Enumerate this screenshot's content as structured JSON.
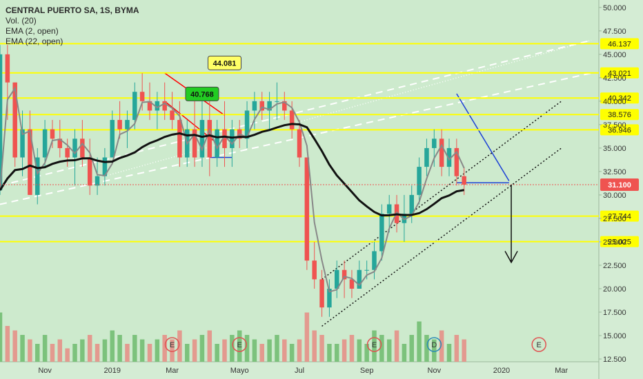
{
  "chart_data": {
    "type": "candlestick",
    "legend": {
      "title": "CENTRAL PUERTO SA, 1S, BYMA",
      "vol": "Vol. (20)",
      "ema2": "EMA (2, open)",
      "ema22": "EMA (22, open)"
    },
    "y_ticks": [
      "50.000",
      "47.500",
      "45.000",
      "42.500",
      "40.000",
      "37.500",
      "35.000",
      "32.500",
      "30.000",
      "27.500",
      "25.000",
      "22.500",
      "20.000",
      "17.500",
      "15.000",
      "12.500"
    ],
    "y_tick_values": [
      50,
      47.5,
      45,
      42.5,
      40,
      37.5,
      35,
      32.5,
      30,
      27.5,
      25,
      22.5,
      20,
      17.5,
      15,
      12.5
    ],
    "ylim": [
      12.5,
      50.5
    ],
    "x_ticks": [
      "Nov",
      "2019",
      "Mar",
      "Mayo",
      "Jul",
      "Sep",
      "Nov",
      "2020",
      "Mar"
    ],
    "x_tick_weeks": [
      2,
      11,
      19,
      28,
      36,
      45,
      54,
      63,
      71
    ],
    "x_range_weeks": [
      -4,
      76
    ],
    "horizontal_levels": [
      {
        "label": "46.137",
        "value": 46.137
      },
      {
        "label": "43.021",
        "value": 43.021
      },
      {
        "label": "40.342",
        "value": 40.342
      },
      {
        "label": "38.576",
        "value": 38.576
      },
      {
        "label": "36.946",
        "value": 36.946
      },
      {
        "label": "27.744",
        "value": 27.744
      },
      {
        "label": "25.025",
        "value": 25.025
      }
    ],
    "last_price": {
      "label": "31.100",
      "value": 31.1
    },
    "callouts": [
      {
        "label": "44.081",
        "value": 44.081,
        "week": 26
      },
      {
        "label": "40.768",
        "value": 40.768,
        "week": 23
      }
    ],
    "events": [
      {
        "letter": "E",
        "week": 19
      },
      {
        "letter": "E",
        "week": 28
      },
      {
        "letter": "E",
        "week": 46
      },
      {
        "letter": "D",
        "week": 54
      },
      {
        "letter": "E",
        "week": 68
      }
    ],
    "candles": [
      [
        -4,
        30.5,
        46,
        30,
        45
      ],
      [
        -3,
        45,
        46,
        38,
        42
      ],
      [
        -2,
        42,
        42,
        33,
        34
      ],
      [
        -1,
        34,
        39,
        32,
        37
      ],
      [
        0,
        37,
        39,
        30,
        30
      ],
      [
        1,
        30,
        35,
        29,
        34
      ],
      [
        2,
        34,
        38,
        33,
        37
      ],
      [
        3,
        37,
        38,
        35,
        36
      ],
      [
        4,
        36,
        38,
        34,
        35
      ],
      [
        5,
        35,
        36,
        33,
        34
      ],
      [
        6,
        34,
        37,
        31,
        36
      ],
      [
        7,
        36,
        38,
        33,
        34
      ],
      [
        8,
        34,
        36,
        30,
        31
      ],
      [
        9,
        31,
        34,
        30,
        32
      ],
      [
        10,
        32,
        35,
        31,
        34
      ],
      [
        11,
        34,
        39,
        34,
        38
      ],
      [
        12,
        38,
        40,
        36,
        37
      ],
      [
        13,
        37,
        39,
        35,
        38
      ],
      [
        14,
        38,
        42,
        37,
        41
      ],
      [
        15,
        41,
        43,
        39,
        40
      ],
      [
        16,
        40,
        42,
        38,
        39
      ],
      [
        17,
        39,
        41,
        37,
        40
      ],
      [
        18,
        40,
        42,
        38,
        39
      ],
      [
        19,
        39,
        41,
        37,
        38
      ],
      [
        20,
        38,
        40,
        33,
        34
      ],
      [
        21,
        34,
        38,
        33,
        37
      ],
      [
        22,
        37,
        40,
        33,
        34
      ],
      [
        23,
        34,
        40,
        33,
        38
      ],
      [
        24,
        38,
        41,
        32,
        34
      ],
      [
        25,
        34,
        38,
        33,
        37
      ],
      [
        26,
        37,
        40,
        33,
        35
      ],
      [
        27,
        35,
        38,
        33,
        37
      ],
      [
        28,
        37,
        38,
        35,
        36
      ],
      [
        29,
        36,
        40,
        35,
        39
      ],
      [
        30,
        39,
        41,
        37,
        40
      ],
      [
        31,
        40,
        41,
        38,
        39
      ],
      [
        32,
        39,
        41,
        37,
        40
      ],
      [
        33,
        40,
        42,
        38,
        40
      ],
      [
        34,
        40,
        41,
        38,
        39
      ],
      [
        35,
        39,
        40,
        36,
        37
      ],
      [
        36,
        37,
        38,
        33,
        34
      ],
      [
        37,
        34,
        34,
        22,
        23
      ],
      [
        38,
        23,
        25,
        20,
        21
      ],
      [
        39,
        21,
        22,
        17,
        18
      ],
      [
        40,
        18,
        21,
        17,
        20
      ],
      [
        41,
        20,
        23,
        19,
        22
      ],
      [
        42,
        22,
        23,
        19,
        21
      ],
      [
        43,
        21,
        22,
        19,
        20
      ],
      [
        44,
        20,
        23,
        20,
        22
      ],
      [
        45,
        22,
        23,
        21,
        22
      ],
      [
        46,
        22,
        25,
        21,
        24
      ],
      [
        47,
        24,
        29,
        23,
        28
      ],
      [
        48,
        28,
        30,
        26,
        29
      ],
      [
        49,
        29,
        30,
        26,
        27
      ],
      [
        50,
        27,
        30,
        25,
        28
      ],
      [
        51,
        28,
        31,
        27,
        30
      ],
      [
        52,
        30,
        34,
        29,
        33
      ],
      [
        53,
        33,
        36,
        32,
        35
      ],
      [
        54,
        35,
        37,
        33,
        36
      ],
      [
        55,
        36,
        37,
        32,
        33
      ],
      [
        56,
        33,
        36,
        32,
        35
      ],
      [
        57,
        35,
        36,
        31,
        32
      ],
      [
        58,
        32,
        33,
        30,
        31.1
      ]
    ],
    "volumes": [
      [
        -4,
        0.55,
        "up"
      ],
      [
        -3,
        0.4,
        "down"
      ],
      [
        -2,
        0.35,
        "down"
      ],
      [
        -1,
        0.3,
        "up"
      ],
      [
        0,
        0.25,
        "down"
      ],
      [
        1,
        0.2,
        "up"
      ],
      [
        2,
        0.3,
        "up"
      ],
      [
        3,
        0.2,
        "down"
      ],
      [
        4,
        0.25,
        "down"
      ],
      [
        5,
        0.15,
        "down"
      ],
      [
        6,
        0.2,
        "up"
      ],
      [
        7,
        0.25,
        "up"
      ],
      [
        8,
        0.3,
        "down"
      ],
      [
        9,
        0.2,
        "down"
      ],
      [
        10,
        0.25,
        "up"
      ],
      [
        11,
        0.35,
        "up"
      ],
      [
        12,
        0.3,
        "up"
      ],
      [
        13,
        0.2,
        "down"
      ],
      [
        14,
        0.3,
        "up"
      ],
      [
        15,
        0.25,
        "up"
      ],
      [
        16,
        0.2,
        "down"
      ],
      [
        17,
        0.25,
        "up"
      ],
      [
        18,
        0.3,
        "down"
      ],
      [
        19,
        0.25,
        "down"
      ],
      [
        20,
        0.35,
        "down"
      ],
      [
        21,
        0.2,
        "up"
      ],
      [
        22,
        0.25,
        "down"
      ],
      [
        23,
        0.3,
        "up"
      ],
      [
        24,
        0.35,
        "down"
      ],
      [
        25,
        0.2,
        "up"
      ],
      [
        26,
        0.25,
        "down"
      ],
      [
        27,
        0.3,
        "up"
      ],
      [
        28,
        0.35,
        "up"
      ],
      [
        29,
        0.3,
        "up"
      ],
      [
        30,
        0.25,
        "up"
      ],
      [
        31,
        0.2,
        "down"
      ],
      [
        32,
        0.25,
        "up"
      ],
      [
        33,
        0.3,
        "up"
      ],
      [
        34,
        0.25,
        "down"
      ],
      [
        35,
        0.2,
        "up"
      ],
      [
        36,
        0.25,
        "down"
      ],
      [
        37,
        0.55,
        "down"
      ],
      [
        38,
        0.35,
        "down"
      ],
      [
        39,
        0.3,
        "down"
      ],
      [
        40,
        0.2,
        "up"
      ],
      [
        41,
        0.2,
        "up"
      ],
      [
        42,
        0.25,
        "down"
      ],
      [
        43,
        0.3,
        "down"
      ],
      [
        44,
        0.25,
        "up"
      ],
      [
        45,
        0.2,
        "up"
      ],
      [
        46,
        0.35,
        "up"
      ],
      [
        47,
        0.3,
        "up"
      ],
      [
        48,
        0.25,
        "up"
      ],
      [
        49,
        0.35,
        "down"
      ],
      [
        50,
        0.2,
        "up"
      ],
      [
        51,
        0.3,
        "up"
      ],
      [
        52,
        0.45,
        "up"
      ],
      [
        53,
        0.3,
        "up"
      ],
      [
        54,
        0.25,
        "up"
      ],
      [
        55,
        0.35,
        "down"
      ],
      [
        56,
        0.2,
        "up"
      ],
      [
        57,
        0.3,
        "down"
      ],
      [
        58,
        0.25,
        "down"
      ]
    ],
    "colors": {
      "up": "#26a69a",
      "down": "#ef5350",
      "level": "#ffff00",
      "ema22": "#111111",
      "ema2": "#888888",
      "last": "#ef5350",
      "upvol": "#7cc27c",
      "downvol": "#e39a8f"
    }
  }
}
